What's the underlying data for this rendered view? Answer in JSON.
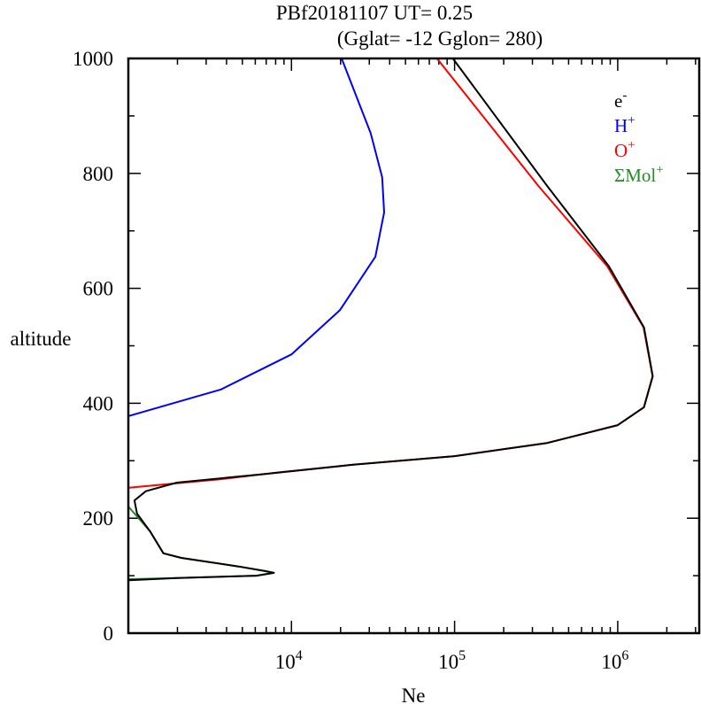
{
  "chart_data": {
    "type": "line",
    "title": "PBf20181107   UT=  0.25",
    "subtitle": "(Gglat= -12   Gglon=  280)",
    "xlabel": "Ne",
    "ylabel": "altitude",
    "xscale": "log",
    "xlim": [
      1000,
      3160000
    ],
    "ylim": [
      0,
      1000
    ],
    "x_ticks": [
      {
        "value": 10000,
        "base": "10",
        "exp": "4"
      },
      {
        "value": 100000,
        "base": "10",
        "exp": "5"
      },
      {
        "value": 1000000,
        "base": "10",
        "exp": "6"
      }
    ],
    "y_ticks": [
      0,
      200,
      400,
      600,
      800,
      1000
    ],
    "legend_position": "top-right",
    "series": [
      {
        "name": "e-",
        "label": "e",
        "sup": "-",
        "color": "#000000",
        "points": [
          [
            97500,
            1000
          ],
          [
            370000,
            778
          ],
          [
            880000,
            639
          ],
          [
            1450000,
            532
          ],
          [
            1640000,
            447
          ],
          [
            1450000,
            393
          ],
          [
            1000000,
            362
          ],
          [
            370000,
            331
          ],
          [
            100000,
            308
          ],
          [
            23900,
            293
          ],
          [
            6900,
            277
          ],
          [
            1980,
            262
          ],
          [
            1280,
            247
          ],
          [
            1090,
            231
          ],
          [
            1130,
            208
          ],
          [
            1360,
            177
          ],
          [
            1640,
            139
          ],
          [
            2110,
            131
          ],
          [
            4740,
            116
          ],
          [
            6900,
            108
          ],
          [
            7800,
            105
          ],
          [
            6100,
            100
          ],
          [
            1980,
            96
          ],
          [
            1010,
            92
          ]
        ]
      },
      {
        "name": "H+",
        "label": "H",
        "sup": "+",
        "color": "#0000ff",
        "points": [
          [
            20300,
            1000
          ],
          [
            30600,
            870
          ],
          [
            36000,
            793
          ],
          [
            37000,
            732
          ],
          [
            32700,
            655
          ],
          [
            19800,
            562
          ],
          [
            10000,
            485
          ],
          [
            3700,
            424
          ],
          [
            1010,
            378
          ]
        ]
      },
      {
        "name": "O+",
        "label": "O",
        "sup": "+",
        "color": "#ff0000",
        "points": [
          [
            78000,
            1000
          ],
          [
            327000,
            778
          ],
          [
            860000,
            639
          ],
          [
            1440000,
            532
          ],
          [
            1635000,
            447
          ],
          [
            1445000,
            393
          ],
          [
            1000000,
            362
          ],
          [
            370000,
            331
          ],
          [
            100000,
            308
          ],
          [
            23900,
            293
          ],
          [
            8500,
            280
          ],
          [
            3700,
            268
          ],
          [
            1010,
            253
          ]
        ]
      },
      {
        "name": "ΣMol+",
        "label": "ΣMol",
        "sup": "+",
        "color": "#228b22",
        "points": [
          [
            1010,
            219
          ],
          [
            1360,
            177
          ],
          [
            1640,
            139
          ],
          [
            2110,
            131
          ],
          [
            4740,
            116
          ],
          [
            6900,
            108
          ],
          [
            7800,
            105
          ],
          [
            6100,
            100
          ],
          [
            1980,
            96
          ],
          [
            1010,
            94
          ]
        ]
      }
    ]
  }
}
